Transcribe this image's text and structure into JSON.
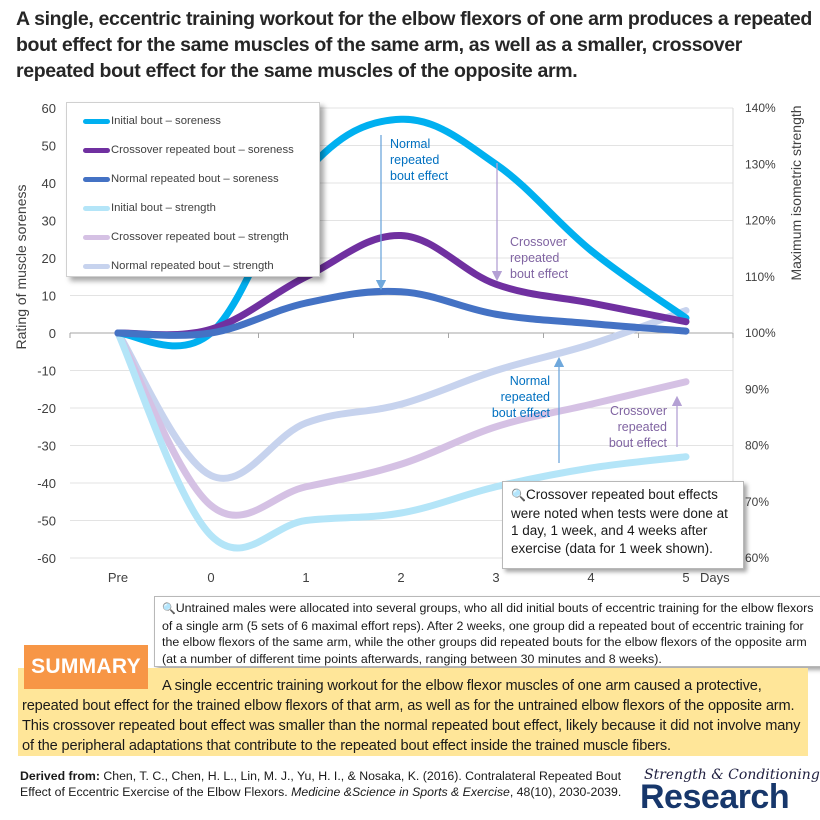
{
  "title": "A single, eccentric training workout for the elbow flexors of one arm produces a repeated bout effect for the same muscles of the same arm, as well as a smaller, crossover repeated bout effect for the same muscles of the opposite arm.",
  "chart_data": {
    "type": "line",
    "x": [
      "Pre",
      "0",
      "1",
      "2",
      "3",
      "4",
      "5"
    ],
    "x_unit_label": "Days",
    "ylabel": "Rating of muscle soreness",
    "ylim": [
      -60,
      60
    ],
    "yticks": [
      60,
      50,
      40,
      30,
      20,
      10,
      0,
      -10,
      -20,
      -30,
      -40,
      -50,
      -60
    ],
    "y2label": "Maximum isometric strength",
    "y2lim": [
      60,
      140
    ],
    "y2ticks": [
      "140%",
      "130%",
      "120%",
      "110%",
      "100%",
      "90%",
      "80%",
      "70%",
      "60%"
    ],
    "grid": true,
    "legend_position": "top-left",
    "series": [
      {
        "name": "Initial bout – soreness",
        "axis": "left",
        "color": "#00b0f0",
        "values": [
          0,
          0,
          43,
          57,
          45,
          22,
          4
        ]
      },
      {
        "name": "Crossover repeated bout – soreness",
        "axis": "left",
        "color": "#7030a0",
        "values": [
          0,
          1,
          15,
          26,
          13,
          8,
          3
        ]
      },
      {
        "name": "Normal repeated bout – soreness",
        "axis": "left",
        "color": "#4472c4",
        "values": [
          0,
          0,
          8,
          11,
          5,
          2.5,
          0.5
        ]
      },
      {
        "name": "Initial bout – strength",
        "axis": "right",
        "color": "#b4e5f8",
        "values_percent": [
          100,
          64,
          67,
          68,
          73,
          76,
          78
        ],
        "values": [
          0,
          -54,
          -50,
          -48,
          -41,
          -36,
          -33
        ]
      },
      {
        "name": "Crossover repeated bout – strength",
        "axis": "right",
        "color": "#d5c1e4",
        "values_percent": [
          100,
          69,
          73,
          77,
          83,
          87,
          91
        ],
        "values": [
          0,
          -46,
          -41,
          -35,
          -25,
          -19,
          -13
        ]
      },
      {
        "name": "Normal repeated bout – strength",
        "axis": "right",
        "color": "#c7d3ee",
        "values_percent": [
          100,
          75,
          84,
          87,
          93,
          98,
          104
        ],
        "values": [
          0,
          -38,
          -24,
          -19,
          -10,
          -3,
          6
        ]
      }
    ],
    "annotations": [
      {
        "text": [
          "Normal",
          "repeated",
          "bout effect"
        ],
        "color": "#0070c0",
        "arrow": "down",
        "arrow_color": "#6fa8dc"
      },
      {
        "text": [
          "Crossover",
          "repeated",
          "bout effect"
        ],
        "color": "#8064a2",
        "arrow": "down",
        "arrow_color": "#b4a0d4"
      },
      {
        "text": [
          "Normal",
          "repeated",
          "bout effect"
        ],
        "color": "#0070c0",
        "arrow": "up",
        "arrow_color": "#6fa8dc"
      },
      {
        "text": [
          "Crossover",
          "repeated",
          "bout effect"
        ],
        "color": "#8064a2",
        "arrow": "up",
        "arrow_color": "#b4a0d4"
      }
    ]
  },
  "notes": {
    "chart_note": "Crossover repeated bout effects were noted when tests were done at 1 day, 1 week, and 4 weeks after exercise (data for 1 week shown).",
    "methods_note": "Untrained males were allocated into several groups, who all did initial bouts of eccentric training for the elbow flexors of a single arm (5 sets of 6 maximal effort reps). After 2 weeks, one group did a repeated bout of eccentric training for the elbow flexors of the same arm, while the other groups did repeated bouts for the elbow flexors of the opposite arm (at a number of different time points afterwards, ranging between 30 minutes and 8 weeks).",
    "icon": "magnifier-icon"
  },
  "summary": {
    "label": "SUMMARY",
    "text": "A single eccentric training workout for the elbow flexor muscles of one arm caused a protective, repeated bout effect for the trained elbow flexors of that arm, as well as for the untrained elbow flexors of the opposite arm. This crossover repeated bout effect was smaller than the normal repeated bout effect, likely because it did not involve many of the peripheral adaptations that contribute to the repeated bout effect inside the trained muscle fibers."
  },
  "citation": {
    "prefix": "Derived from:",
    "authors": " Chen, T. C., Chen, H. L., Lin, M. J., Yu, H. I., & Nosaka, K. (2016). Contralateral Repeated Bout Effect of Eccentric Exercise of the Elbow Flexors. ",
    "journal": "Medicine &Science in Sports & Exercise",
    "details": ", 48(10), 2030-2039."
  },
  "logo": {
    "top": "Strength & Conditioning",
    "bottom": "Research"
  }
}
